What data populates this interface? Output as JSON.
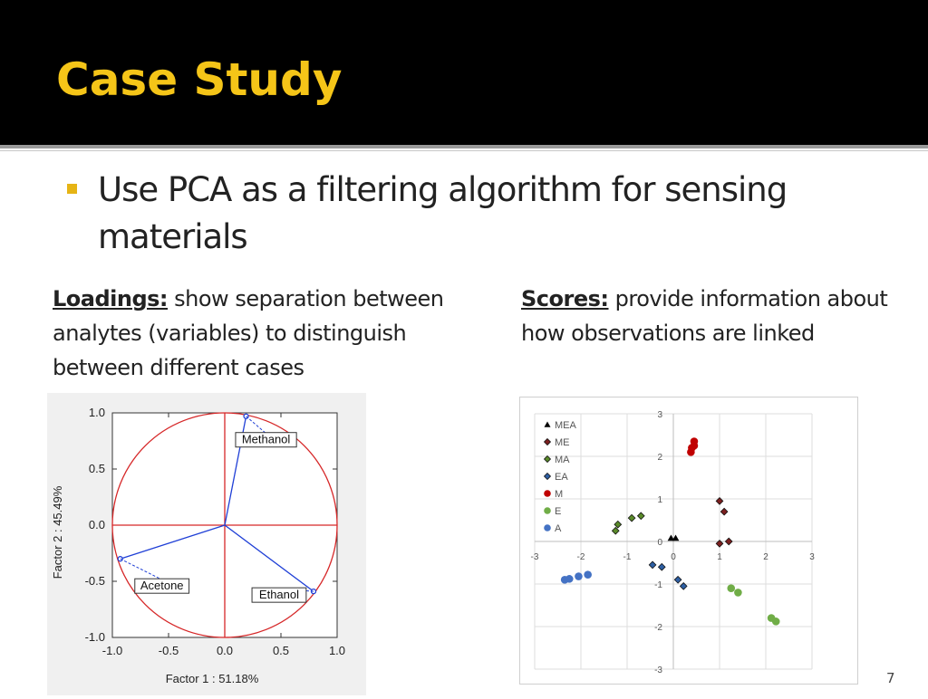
{
  "slide": {
    "title": "Case Study",
    "bullet": "Use PCA as a filtering algorithm for sensing materials",
    "loadings": {
      "key": "Loadings:",
      "text": " show separation between analytes (variables) to distinguish between different cases"
    },
    "scores": {
      "key": "Scores:",
      "text": " provide information about how observations are linked"
    },
    "page_number": "7",
    "colors": {
      "header_bg": "#000000",
      "title": "#f5c518",
      "bullet": "#e6b415"
    }
  },
  "chart_data": [
    {
      "type": "scatter",
      "title": "",
      "xlabel": "Factor 1 : 51.18%",
      "ylabel": "Factor 2 : 45.49%",
      "xlim": [
        -1.0,
        1.0
      ],
      "ylim": [
        -1.0,
        1.0
      ],
      "xticks": [
        "-1.0",
        "-0.5",
        "0.0",
        "0.5",
        "1.0"
      ],
      "yticks": [
        "1.0",
        "0.5",
        "0.0",
        "-0.5",
        "-1.0"
      ],
      "grid": false,
      "unit_circle": true,
      "points": [
        {
          "label": "Methanol",
          "x": 0.19,
          "y": 0.97
        },
        {
          "label": "Acetone",
          "x": -0.93,
          "y": -0.3
        },
        {
          "label": "Ethanol",
          "x": 0.79,
          "y": -0.59
        }
      ]
    },
    {
      "type": "scatter",
      "title": "",
      "xlabel": "",
      "ylabel": "",
      "xlim": [
        -3,
        3
      ],
      "ylim": [
        -3,
        3
      ],
      "xticks": [
        "-3",
        "-2",
        "-1",
        "0",
        "1",
        "2",
        "3"
      ],
      "yticks": [
        "3",
        "2",
        "1",
        "0",
        "-1",
        "-2",
        "-3"
      ],
      "grid": true,
      "legend_position": "top-left",
      "series": [
        {
          "name": "MEA",
          "marker": "triangle",
          "color": "#000000",
          "points": [
            [
              -0.05,
              0.08
            ],
            [
              0.05,
              0.08
            ]
          ]
        },
        {
          "name": "ME",
          "marker": "diamond",
          "color": "#7b1f1f",
          "points": [
            [
              1.0,
              0.95
            ],
            [
              1.1,
              0.7
            ],
            [
              1.2,
              0.0
            ],
            [
              1.0,
              -0.05
            ]
          ]
        },
        {
          "name": "MA",
          "marker": "diamond",
          "color": "#5a8a2a",
          "points": [
            [
              -1.2,
              0.4
            ],
            [
              -1.25,
              0.25
            ],
            [
              -0.9,
              0.55
            ],
            [
              -0.7,
              0.6
            ]
          ]
        },
        {
          "name": "EA",
          "marker": "diamond",
          "color": "#2e5fa3",
          "points": [
            [
              -0.45,
              -0.55
            ],
            [
              -0.25,
              -0.6
            ],
            [
              0.1,
              -0.9
            ],
            [
              0.22,
              -1.05
            ]
          ]
        },
        {
          "name": "M",
          "marker": "circle",
          "color": "#c00000",
          "points": [
            [
              0.45,
              2.35
            ],
            [
              0.45,
              2.25
            ],
            [
              0.4,
              2.2
            ],
            [
              0.38,
              2.1
            ]
          ]
        },
        {
          "name": "E",
          "marker": "circle",
          "color": "#70ad47",
          "points": [
            [
              1.25,
              -1.1
            ],
            [
              1.4,
              -1.2
            ],
            [
              2.12,
              -1.8
            ],
            [
              2.22,
              -1.88
            ]
          ]
        },
        {
          "name": "A",
          "marker": "circle",
          "color": "#4472c4",
          "points": [
            [
              -2.35,
              -0.9
            ],
            [
              -2.25,
              -0.88
            ],
            [
              -2.05,
              -0.82
            ],
            [
              -1.85,
              -0.78
            ]
          ]
        }
      ]
    }
  ]
}
